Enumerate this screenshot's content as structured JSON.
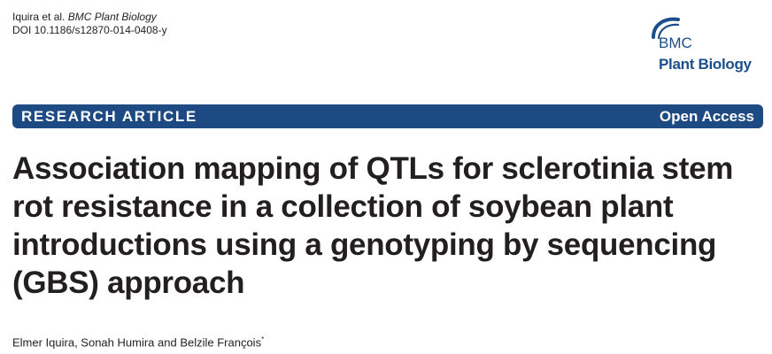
{
  "header": {
    "authors_short": "Iquira et al.",
    "journal": "BMC Plant Biology",
    "doi": "DOI 10.1186/s12870-014-0408-y"
  },
  "logo": {
    "line1": "BMC",
    "line2": "Plant Biology",
    "icon": "bmc-arc-logo-icon",
    "color": "#1a4f8b"
  },
  "banner": {
    "article_type": "RESEARCH ARTICLE",
    "access": "Open Access",
    "color": "#1d4a82"
  },
  "title": "Association mapping of QTLs for sclerotinia stem rot resistance in a collection of soybean plant introductions using a genotyping by sequencing (GBS) approach",
  "authors": {
    "names": "Elmer Iquira, Sonah Humira and Belzile François",
    "marker": "*"
  }
}
